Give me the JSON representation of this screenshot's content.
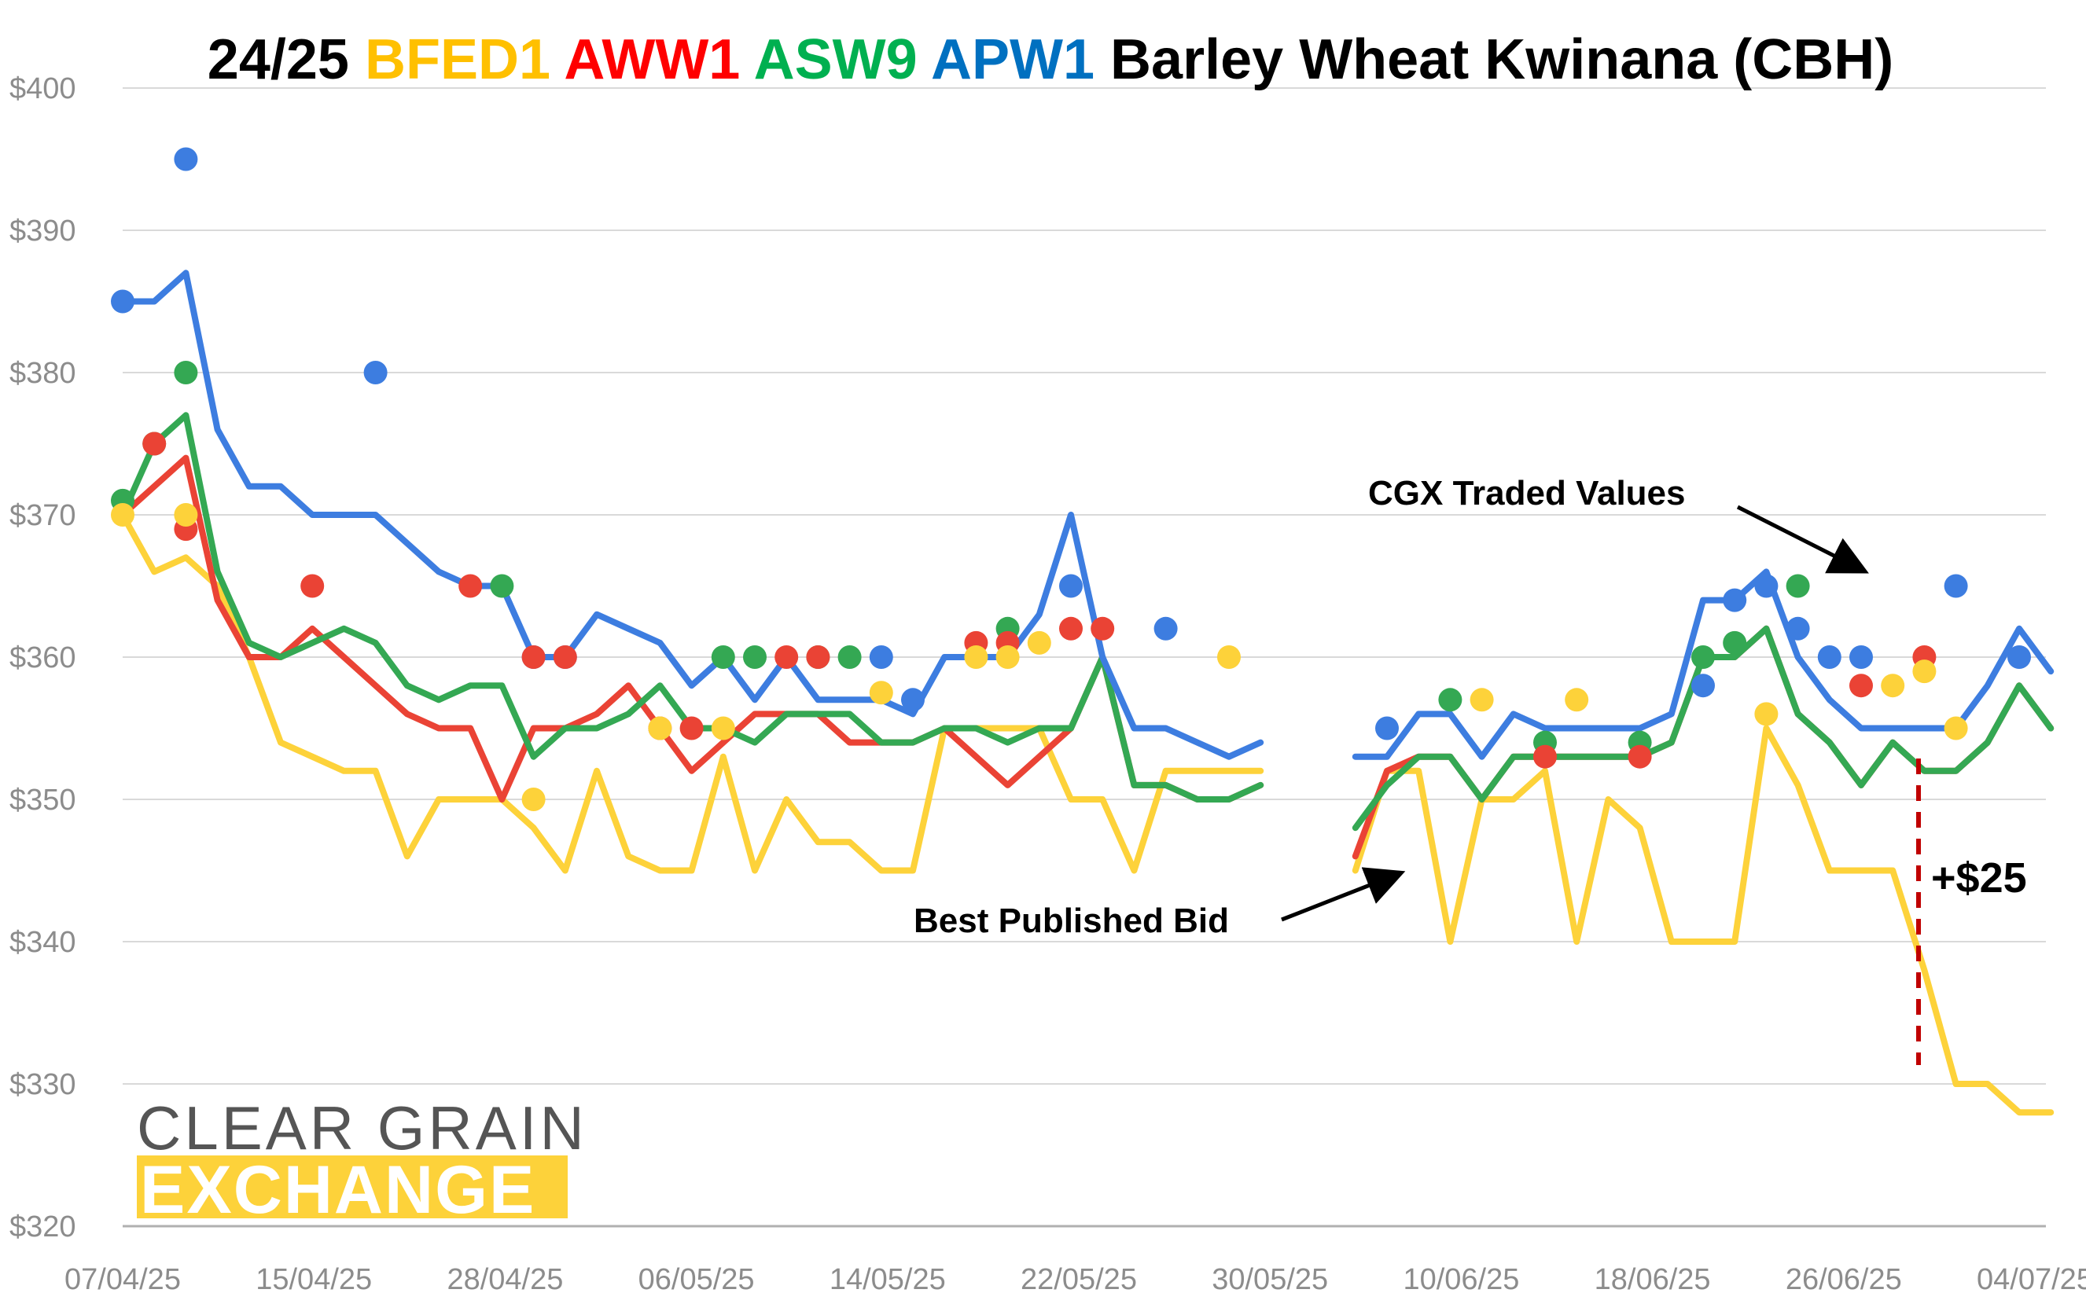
{
  "chart_data": {
    "type": "line",
    "title_parts": [
      {
        "text": "24/25 ",
        "color": "#000000"
      },
      {
        "text": "BFED1 ",
        "color": "#ffc000"
      },
      {
        "text": "AWW1 ",
        "color": "#ff0000"
      },
      {
        "text": "ASW9 ",
        "color": "#00b050"
      },
      {
        "text": "APW1 ",
        "color": "#0070c0"
      },
      {
        "text": "Barley Wheat Kwinana (CBH)",
        "color": "#000000"
      }
    ],
    "xlabel": "",
    "ylabel": "",
    "ylim": [
      320,
      400
    ],
    "y_ticks": [
      "$320",
      "$330",
      "$340",
      "$350",
      "$360",
      "$370",
      "$380",
      "$390",
      "$400"
    ],
    "x_tick_labels": [
      "07/04/25",
      "15/04/25",
      "28/04/25",
      "06/05/25",
      "14/05/25",
      "22/05/25",
      "30/05/25",
      "10/06/25",
      "18/06/25",
      "26/06/25",
      "04/07/25"
    ],
    "grid": true,
    "series": [
      {
        "name": "BFED1",
        "color": "#fdd23a",
        "values": [
          370,
          366,
          367,
          365,
          360,
          354,
          353,
          352,
          352,
          346,
          350,
          350,
          350,
          348,
          345,
          352,
          346,
          345,
          345,
          353,
          345,
          350,
          347,
          347,
          345,
          345,
          355,
          355,
          355,
          355,
          350,
          350,
          345,
          352,
          352,
          352,
          352,
          null,
          null,
          345,
          352,
          352,
          340,
          350,
          350,
          352,
          340,
          350,
          348,
          340,
          340,
          340,
          355,
          351,
          345,
          345,
          345,
          338,
          330,
          330,
          328,
          328
        ]
      },
      {
        "name": "AWW1",
        "color": "#ea4335",
        "values": [
          370,
          372,
          374,
          364,
          360,
          360,
          362,
          360,
          358,
          356,
          355,
          355,
          350,
          355,
          355,
          356,
          358,
          355,
          352,
          354,
          356,
          356,
          356,
          354,
          354,
          354,
          355,
          353,
          351,
          353,
          355,
          360,
          351,
          351,
          350,
          350,
          351,
          null,
          null,
          346,
          352,
          353,
          353,
          350,
          353,
          353,
          353,
          353,
          353,
          354,
          360,
          360,
          362,
          356,
          354,
          351,
          354,
          352,
          352,
          354,
          358,
          355
        ]
      },
      {
        "name": "ASW9",
        "color": "#34a853",
        "values": [
          370,
          375,
          377,
          366,
          361,
          360,
          361,
          362,
          361,
          358,
          357,
          358,
          358,
          353,
          355,
          355,
          356,
          358,
          355,
          355,
          354,
          356,
          356,
          356,
          354,
          354,
          355,
          355,
          354,
          355,
          355,
          360,
          351,
          351,
          350,
          350,
          351,
          null,
          null,
          348,
          351,
          353,
          353,
          350,
          353,
          353,
          353,
          353,
          353,
          354,
          360,
          360,
          362,
          356,
          354,
          351,
          354,
          352,
          352,
          354,
          358,
          355
        ]
      },
      {
        "name": "APW1",
        "color": "#3d7de0",
        "values": [
          385,
          385,
          387,
          376,
          372,
          372,
          370,
          370,
          370,
          368,
          366,
          365,
          365,
          360,
          360,
          363,
          362,
          361,
          358,
          360,
          357,
          360,
          357,
          357,
          357,
          356,
          360,
          360,
          360,
          363,
          370,
          360,
          355,
          355,
          354,
          353,
          354,
          null,
          null,
          353,
          353,
          356,
          356,
          353,
          356,
          355,
          355,
          355,
          355,
          356,
          364,
          364,
          366,
          360,
          357,
          355,
          355,
          355,
          355,
          358,
          362,
          359
        ]
      }
    ],
    "traded_points": [
      {
        "series": "APW1",
        "points": [
          [
            0,
            385
          ],
          [
            2,
            395
          ],
          [
            8,
            380
          ],
          [
            13,
            360
          ],
          [
            14,
            360
          ],
          [
            24,
            360
          ],
          [
            25,
            357
          ],
          [
            30,
            365
          ],
          [
            33,
            362
          ],
          [
            40,
            355
          ],
          [
            50,
            358
          ],
          [
            51,
            364
          ],
          [
            52,
            365
          ],
          [
            53,
            362
          ],
          [
            54,
            360
          ],
          [
            55,
            360
          ],
          [
            58,
            365
          ],
          [
            60,
            360
          ]
        ]
      },
      {
        "series": "ASW9",
        "points": [
          [
            0,
            371
          ],
          [
            1,
            375
          ],
          [
            2,
            380
          ],
          [
            12,
            365
          ],
          [
            19,
            360
          ],
          [
            20,
            360
          ],
          [
            22,
            360
          ],
          [
            23,
            360
          ],
          [
            28,
            362
          ],
          [
            42,
            357
          ],
          [
            45,
            354
          ],
          [
            48,
            354
          ],
          [
            50,
            360
          ],
          [
            51,
            361
          ],
          [
            53,
            365
          ]
        ]
      },
      {
        "series": "AWW1",
        "points": [
          [
            1,
            375
          ],
          [
            2,
            369
          ],
          [
            6,
            365
          ],
          [
            11,
            365
          ],
          [
            13,
            360
          ],
          [
            14,
            360
          ],
          [
            17,
            355
          ],
          [
            18,
            355
          ],
          [
            21,
            360
          ],
          [
            22,
            360
          ],
          [
            27,
            361
          ],
          [
            28,
            361
          ],
          [
            30,
            362
          ],
          [
            31,
            362
          ],
          [
            45,
            353
          ],
          [
            48,
            353
          ],
          [
            55,
            358
          ],
          [
            57,
            360
          ]
        ]
      },
      {
        "series": "BFED1",
        "points": [
          [
            0,
            370
          ],
          [
            2,
            370
          ],
          [
            13,
            350
          ],
          [
            17,
            355
          ],
          [
            19,
            355
          ],
          [
            24,
            357.5
          ],
          [
            27,
            360
          ],
          [
            28,
            360
          ],
          [
            29,
            361
          ],
          [
            35,
            360
          ],
          [
            43,
            357
          ],
          [
            46,
            357
          ],
          [
            52,
            356
          ],
          [
            56,
            358
          ],
          [
            57,
            359
          ],
          [
            58,
            355
          ]
        ]
      }
    ],
    "annotations": [
      {
        "text": "CGX Traded Values"
      },
      {
        "text": "Best Published Bid"
      },
      {
        "text": "+$25"
      }
    ],
    "logo": {
      "line1": "CLEAR GRAIN",
      "line2": "EXCHANGE",
      "accent": "#fdd23a"
    }
  }
}
